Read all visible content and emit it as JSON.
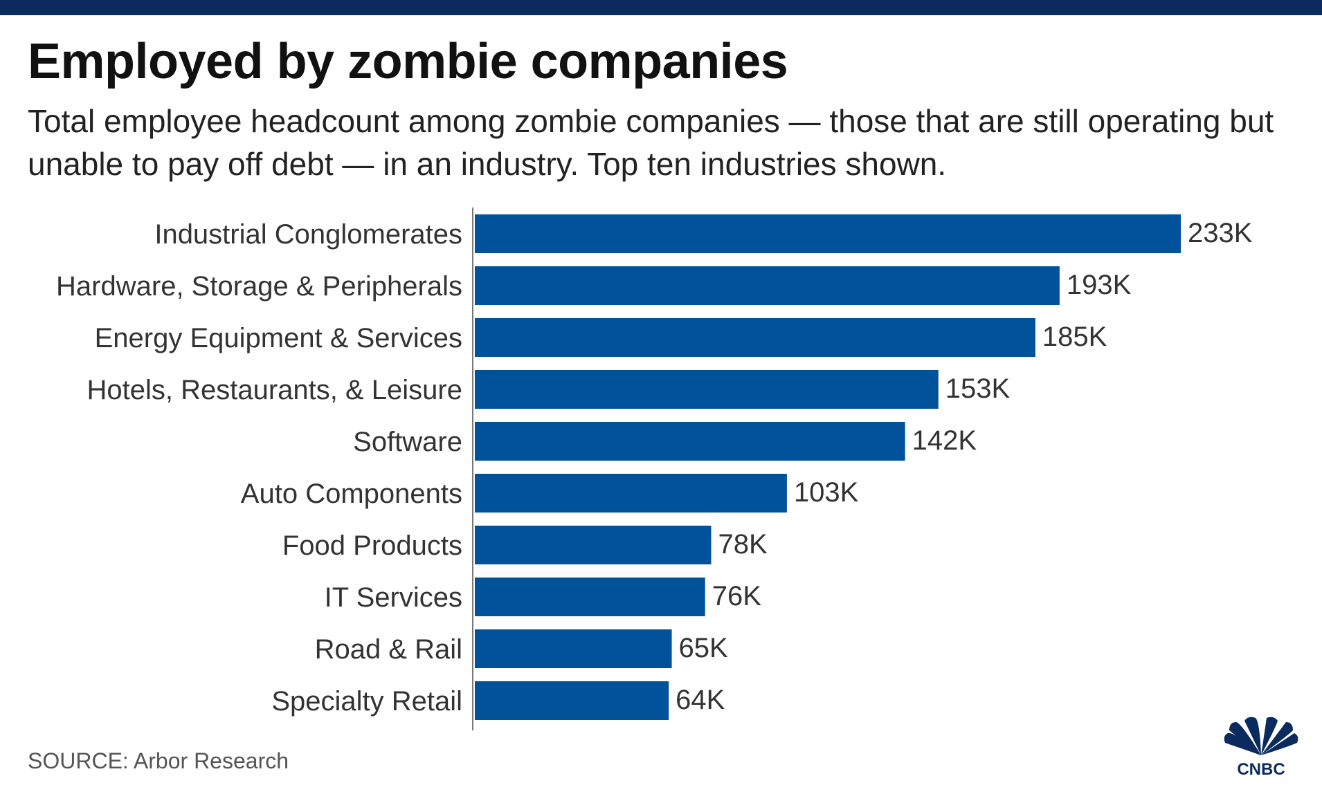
{
  "header": {
    "title": "Employed by zombie companies",
    "subtitle": "Total employee headcount among zombie companies — those that are still operating but unable to pay off debt — in an industry. Top ten industries shown."
  },
  "chart_data": {
    "type": "bar",
    "orientation": "horizontal",
    "title": "Employed by zombie companies",
    "xlabel": "",
    "ylabel": "",
    "xlim": [
      0,
      233
    ],
    "value_unit": "thousand employees",
    "color": "#00539b",
    "categories": [
      "Industrial Conglomerates",
      "Hardware, Storage & Peripherals",
      "Energy Equipment & Services",
      "Hotels, Restaurants, & Leisure",
      "Software",
      "Auto Components",
      "Food Products",
      "IT Services",
      "Road & Rail",
      "Specialty Retail"
    ],
    "values": [
      233,
      193,
      185,
      153,
      142,
      103,
      78,
      76,
      65,
      64
    ],
    "value_labels": [
      "233K",
      "193K",
      "185K",
      "153K",
      "142K",
      "103K",
      "78K",
      "76K",
      "65K",
      "64K"
    ]
  },
  "footer": {
    "source": "SOURCE: Arbor Research",
    "logo_text": "CNBC",
    "logo_colors": [
      "#0b2a5e"
    ]
  },
  "colors": {
    "top_bar": "#0b2a5e",
    "bar": "#00539b",
    "axis": "#777777"
  }
}
